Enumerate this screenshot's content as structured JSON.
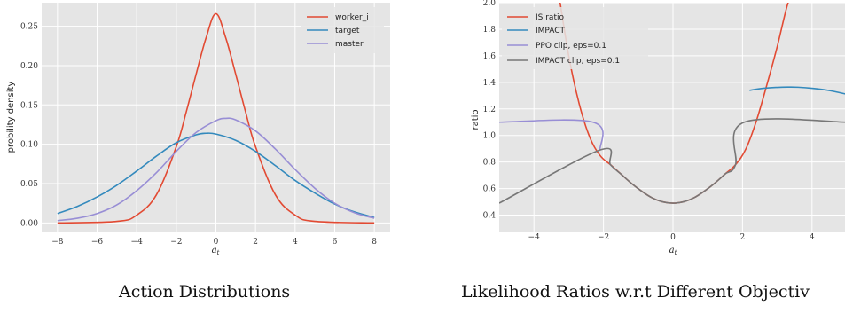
{
  "captions": {
    "left": "Action Distributions",
    "right": "Likelihood Ratios w.r.t Different Objectiv"
  },
  "chart_data": [
    {
      "type": "line",
      "xlabel": "a",
      "xlabel_sub": "t",
      "ylabel": "probility density",
      "xlim": [
        -8.8,
        8.8
      ],
      "ylim": [
        -0.012,
        0.28
      ],
      "xticks": [
        -8,
        -6,
        -4,
        -2,
        0,
        2,
        4,
        6,
        8
      ],
      "yticks": [
        0.0,
        0.05,
        0.1,
        0.15,
        0.2,
        0.25
      ],
      "ytick_labels": [
        "0.00",
        "0.05",
        "0.10",
        "0.15",
        "0.20",
        "0.25"
      ],
      "legend_position": "top-right",
      "grid": true,
      "series": [
        {
          "name": "worker_i",
          "color": "#e24a33",
          "x": [
            -8,
            -5,
            -4,
            -3,
            -2,
            -1.5,
            -1,
            -0.5,
            0,
            0.5,
            1,
            1.5,
            2,
            3,
            4,
            5,
            8
          ],
          "y": [
            0.0,
            0.002,
            0.01,
            0.036,
            0.097,
            0.141,
            0.189,
            0.235,
            0.266,
            0.235,
            0.189,
            0.141,
            0.097,
            0.036,
            0.01,
            0.002,
            0.0
          ]
        },
        {
          "name": "target",
          "color": "#348abd",
          "x": [
            -8,
            -7,
            -6,
            -5,
            -4,
            -3,
            -2,
            -1,
            -0.5,
            0,
            1,
            2,
            3,
            4,
            5,
            6,
            7,
            8
          ],
          "y": [
            0.012,
            0.021,
            0.033,
            0.048,
            0.066,
            0.085,
            0.102,
            0.112,
            0.114,
            0.113,
            0.105,
            0.091,
            0.073,
            0.054,
            0.038,
            0.024,
            0.014,
            0.007
          ]
        },
        {
          "name": "master",
          "color": "#988ed5",
          "x": [
            -8,
            -7,
            -6,
            -5,
            -4,
            -3,
            -2,
            -1,
            0,
            0.5,
            1,
            2,
            3,
            4,
            5,
            6,
            7,
            8
          ],
          "y": [
            0.003,
            0.006,
            0.012,
            0.023,
            0.041,
            0.064,
            0.091,
            0.115,
            0.13,
            0.133,
            0.131,
            0.117,
            0.094,
            0.068,
            0.044,
            0.025,
            0.013,
            0.006
          ]
        }
      ]
    },
    {
      "type": "line",
      "xlabel": "a",
      "xlabel_sub": "t",
      "ylabel": "ratio",
      "xlim": [
        -5.0,
        5.0
      ],
      "ylim": [
        0.27,
        2.0
      ],
      "xticks": [
        -4,
        -2,
        0,
        2,
        4
      ],
      "yticks": [
        0.4,
        0.6,
        0.8,
        1.0,
        1.2,
        1.4,
        1.6,
        1.8,
        2.0
      ],
      "ytick_labels": [
        "0.4",
        "0.6",
        "0.8",
        "1.0",
        "1.2",
        "1.4",
        "1.6",
        "1.8",
        "2.0"
      ],
      "legend_position": "top-left",
      "grid": true,
      "series": [
        {
          "name": "IS ratio",
          "color": "#e24a33",
          "x": [
            -3.3,
            -3.0,
            -2.7,
            -2.4,
            -2.1,
            -1.8,
            -1.5,
            -1.2,
            -0.9,
            -0.6,
            -0.3,
            0.0,
            0.3,
            0.6,
            0.9,
            1.2,
            1.5,
            1.8,
            2.1,
            2.4,
            2.7,
            3.0,
            3.3,
            3.5
          ],
          "y": [
            2.09,
            1.6,
            1.24,
            0.99,
            0.85,
            0.78,
            0.71,
            0.64,
            0.58,
            0.53,
            0.5,
            0.49,
            0.5,
            0.53,
            0.58,
            0.64,
            0.71,
            0.78,
            0.9,
            1.11,
            1.38,
            1.67,
            1.99,
            2.1
          ]
        },
        {
          "name": "IMPACT",
          "color": "#348abd",
          "x": [
            2.2,
            2.6,
            3.0,
            3.3,
            3.6,
            4.0,
            4.5,
            5.0
          ],
          "y": [
            1.34,
            1.355,
            1.362,
            1.364,
            1.363,
            1.355,
            1.338,
            1.31
          ]
        },
        {
          "name": "PPO clip, eps=0.1",
          "color": "#988ed5",
          "x": [
            -5.0,
            -2.3,
            -2.1
          ],
          "y": [
            1.1,
            1.1,
            0.89
          ]
        },
        {
          "name": "IMPACT clip, eps=0.1",
          "color": "#777777",
          "x": [
            -5.0,
            -2.1,
            -1.8,
            -1.5,
            -1.2,
            -0.9,
            -0.6,
            -0.3,
            0.0,
            0.3,
            0.6,
            0.9,
            1.2,
            1.5,
            1.8,
            2.05,
            5.0
          ],
          "y": [
            0.49,
            0.89,
            0.78,
            0.71,
            0.64,
            0.58,
            0.53,
            0.5,
            0.49,
            0.5,
            0.53,
            0.58,
            0.64,
            0.71,
            0.78,
            1.1,
            1.1
          ]
        }
      ]
    }
  ]
}
